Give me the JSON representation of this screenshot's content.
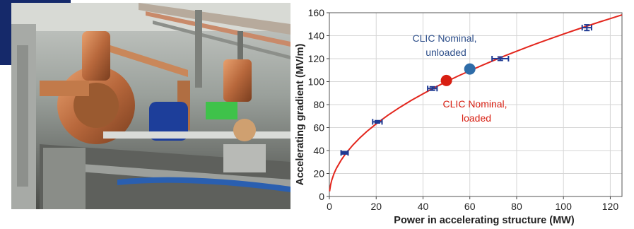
{
  "photo": {
    "alt": "accelerator test stand photo"
  },
  "colors": {
    "curve": "#e3261d",
    "error_bar": "#1f3a93",
    "nominal_unloaded": "#2e6ca8",
    "nominal_loaded": "#d81f12",
    "corner_block": "#15296a"
  },
  "chart_data": {
    "type": "scatter",
    "title": "",
    "xlabel": "Power in accelerating structure (MW)",
    "ylabel": "Accelerating gradient (MV/m)",
    "xlim": [
      0,
      125
    ],
    "ylim": [
      0,
      160
    ],
    "xticks": [
      "0",
      "20",
      "40",
      "60",
      "80",
      "100",
      "120"
    ],
    "yticks": [
      "0",
      "20",
      "40",
      "60",
      "80",
      "100",
      "120",
      "140",
      "160"
    ],
    "grid": true,
    "measurements": {
      "x": [
        6.5,
        20.5,
        44,
        73,
        110
      ],
      "y": [
        38,
        65,
        94,
        120,
        147
      ],
      "x_err": [
        1.5,
        2,
        2,
        3.5,
        2
      ],
      "y_err": [
        1,
        1,
        1.5,
        1.5,
        2.5
      ]
    },
    "fit_curve": {
      "x": [
        0.1,
        0.5,
        1,
        2,
        3,
        5,
        7,
        10,
        13,
        16,
        20,
        25,
        30,
        35,
        40,
        45,
        50,
        55,
        60,
        65,
        70,
        75,
        80,
        85,
        90,
        95,
        100,
        105,
        110,
        115,
        120,
        125
      ],
      "y": [
        4.5,
        10.0,
        14.1,
        20.0,
        24.5,
        31.6,
        37.4,
        44.7,
        51.0,
        56.6,
        63.2,
        70.7,
        77.5,
        83.7,
        89.4,
        94.9,
        100.0,
        104.9,
        109.5,
        114.0,
        118.3,
        122.5,
        126.5,
        130.4,
        134.2,
        137.8,
        141.4,
        144.9,
        148.3,
        151.7,
        154.9,
        158.1
      ]
    },
    "highlights": [
      {
        "x": 60,
        "y": 111,
        "label_lines": [
          "CLIC Nominal,",
          "unloaded"
        ],
        "color": "#2e6ca8"
      },
      {
        "x": 50,
        "y": 101,
        "label_lines": [
          "CLIC Nominal,",
          "loaded"
        ],
        "color": "#d81f12"
      }
    ]
  }
}
